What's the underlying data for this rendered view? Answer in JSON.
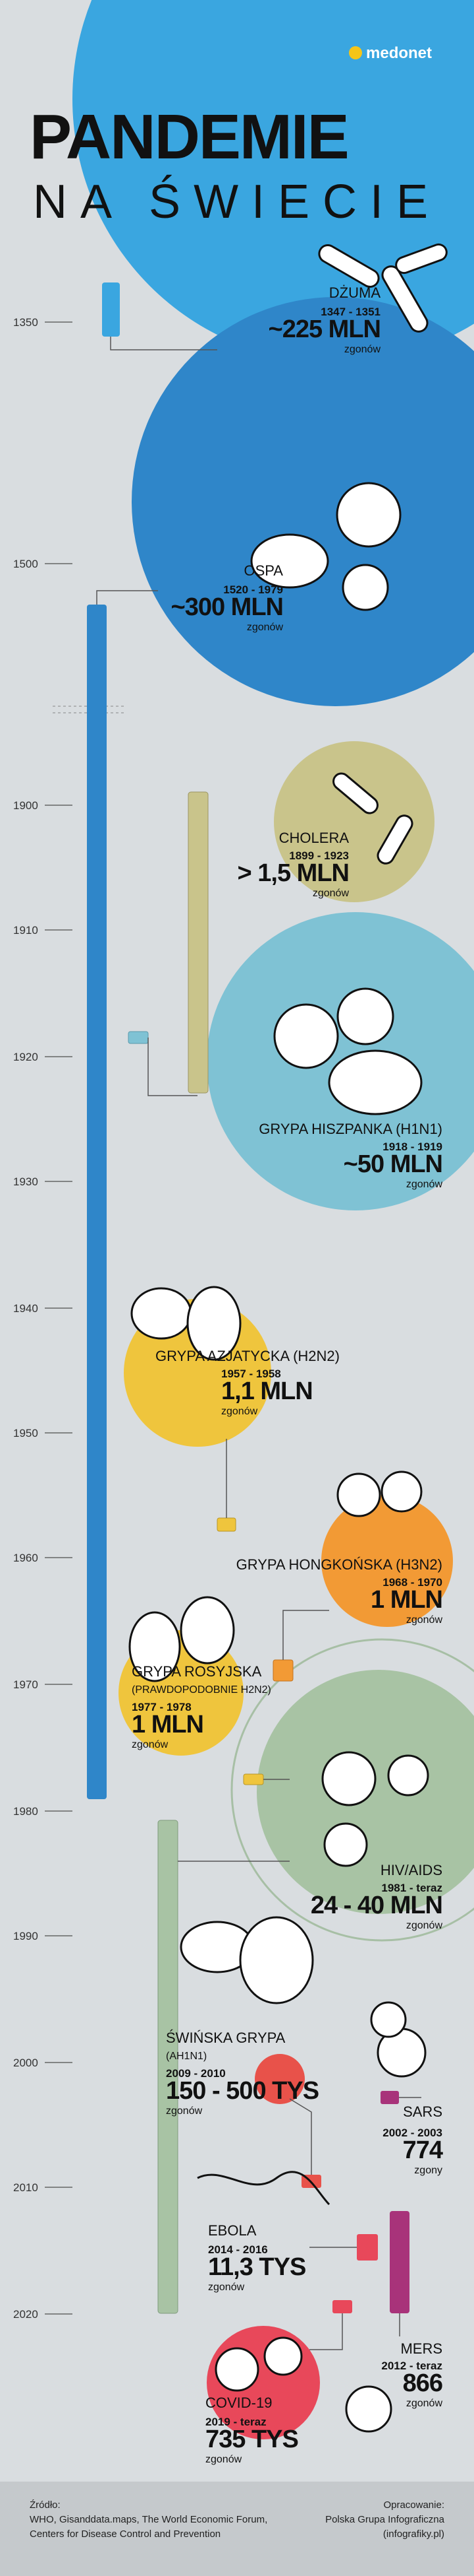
{
  "header": {
    "logo": "medonet",
    "title_line1": "PANDEMIE",
    "title_line2": "NA ŚWIECIE"
  },
  "timeline": {
    "ticks": [
      "1350",
      "1500",
      "1900",
      "1910",
      "1920",
      "1930",
      "1940",
      "1950",
      "1960",
      "1970",
      "1980",
      "1990",
      "2000",
      "2010",
      "2020"
    ]
  },
  "pandemics": [
    {
      "name": "DŻUMA",
      "years": "1347 - 1351",
      "deaths": "~225 MLN",
      "deaths_label": "zgonów"
    },
    {
      "name": "OSPA",
      "years": "1520 - 1979",
      "deaths": "~300 MLN",
      "deaths_label": "zgonów"
    },
    {
      "name": "CHOLERA",
      "years": "1899 - 1923",
      "deaths": "> 1,5 MLN",
      "deaths_label": "zgonów"
    },
    {
      "name": "GRYPA HISZPANKA (H1N1)",
      "years": "1918 - 1919",
      "deaths": "~50 MLN",
      "deaths_label": "zgonów"
    },
    {
      "name": "GRYPA AZJATYCKA (H2N2)",
      "years": "1957 - 1958",
      "deaths": "1,1 MLN",
      "deaths_label": "zgonów"
    },
    {
      "name": "GRYPA HONGKOŃSKA (H3N2)",
      "years": "1968 - 1970",
      "deaths": "1 MLN",
      "deaths_label": "zgonów"
    },
    {
      "name": "GRYPA ROSYJSKA",
      "subtitle": "(PRAWDOPODOBNIE H2N2)",
      "years": "1977 - 1978",
      "deaths": "1 MLN",
      "deaths_label": "zgonów"
    },
    {
      "name": "HIV/AIDS",
      "years": "1981 - teraz",
      "deaths": "24 - 40 MLN",
      "deaths_label": "zgonów"
    },
    {
      "name": "ŚWIŃSKA GRYPA",
      "subtitle": "(AH1N1)",
      "years": "2009 - 2010",
      "deaths": "150 - 500 TYS",
      "deaths_label": "zgonów"
    },
    {
      "name": "SARS",
      "years": "2002 - 2003",
      "deaths": "774",
      "deaths_label": "zgony"
    },
    {
      "name": "EBOLA",
      "years": "2014 - 2016",
      "deaths": "11,3 TYS",
      "deaths_label": "zgonów"
    },
    {
      "name": "MERS",
      "years": "2012 - teraz",
      "deaths": "866",
      "deaths_label": "zgonów"
    },
    {
      "name": "COVID-19",
      "years": "2019 - teraz",
      "deaths": "735 TYS",
      "deaths_label": "zgonów"
    }
  ],
  "footer": {
    "source_label": "Źródło:",
    "source_line1": "WHO, Gisanddata.maps, The World Economic Forum,",
    "source_line2": "Centers for Disease Control and Prevention",
    "credit_label": "Opracowanie:",
    "credit_line1": "Polska Grupa Infograficzna",
    "credit_line2": "(infografiky.pl)"
  }
}
